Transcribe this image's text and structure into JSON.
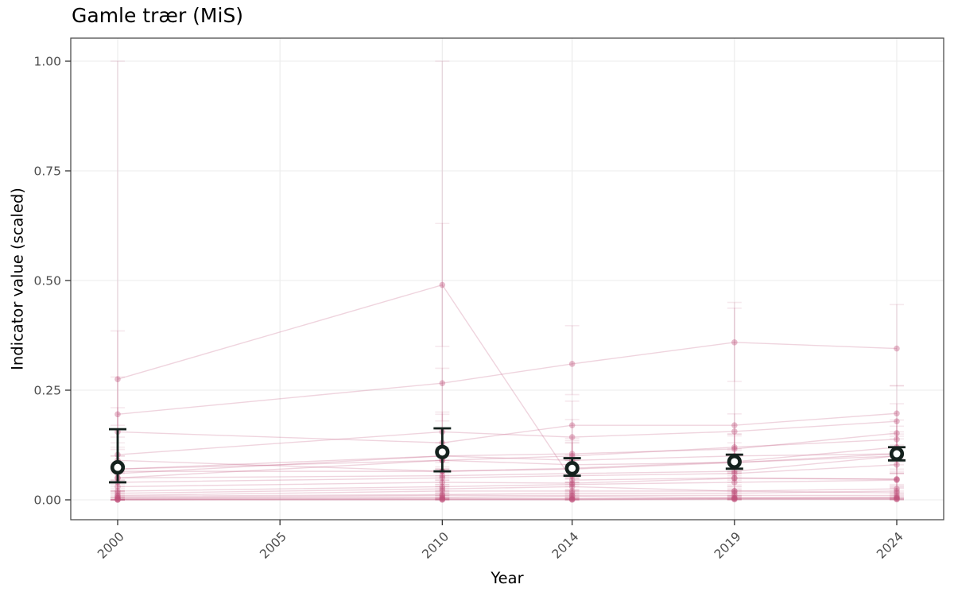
{
  "title": "Gamle trær (MiS)",
  "chart_data": {
    "type": "line",
    "title": "Gamle trær (MiS)",
    "xlabel": "Year",
    "ylabel": "Indicator value (scaled)",
    "grid": true,
    "legend": false,
    "ylim": [
      -0.045,
      1.05
    ],
    "xlim": [
      1998.5,
      2025.5
    ],
    "x_ticks": [
      {
        "value": 2000,
        "label": "2000"
      },
      {
        "value": 2005,
        "label": "2005"
      },
      {
        "value": 2010,
        "label": "2010"
      },
      {
        "value": 2014,
        "label": "2014"
      },
      {
        "value": 2019,
        "label": "2019"
      },
      {
        "value": 2024,
        "label": "2024"
      }
    ],
    "y_ticks": [
      {
        "value": 0.0,
        "label": "0.00"
      },
      {
        "value": 0.25,
        "label": "0.25"
      },
      {
        "value": 0.5,
        "label": "0.50"
      },
      {
        "value": 0.75,
        "label": "0.75"
      },
      {
        "value": 1.0,
        "label": "1.00"
      }
    ],
    "years": [
      2000,
      2010,
      2014,
      2019,
      2024
    ],
    "mean_series": {
      "name": "mean",
      "values": [
        0.074,
        0.109,
        0.072,
        0.087,
        0.105
      ],
      "ci_low": [
        0.04,
        0.065,
        0.055,
        0.071,
        0.09
      ],
      "ci_high": [
        0.161,
        0.163,
        0.095,
        0.103,
        0.12
      ]
    },
    "site_series": [
      {
        "values": [
          0.275,
          0.49,
          0.045,
          0.05,
          0.047
        ],
        "ci_low": [
          0.17,
          0.35,
          0.015,
          0.02,
          0.02
        ],
        "ci_high": [
          0.385,
          0.63,
          0.09,
          0.1,
          0.09
        ]
      },
      {
        "values": [
          0.195,
          0.266,
          0.31,
          0.359,
          0.345
        ],
        "ci_low": [
          0.13,
          0.18,
          0.24,
          0.27,
          0.26
        ],
        "ci_high": [
          0.28,
          0.3,
          0.397,
          0.45,
          0.445
        ]
      },
      {
        "values": [
          0.07,
          0.09,
          0.08,
          0.085,
          0.1
        ],
        "ci_low": [
          0.0,
          0.05,
          0.04,
          0.05,
          0.06
        ],
        "ci_high": [
          1.0,
          0.16,
          0.13,
          0.13,
          0.15
        ]
      },
      {
        "values": [
          0.06,
          0.1,
          0.09,
          0.1,
          0.105
        ],
        "ci_low": [
          0.02,
          0.02,
          0.05,
          0.06,
          0.065
        ],
        "ci_high": [
          0.12,
          1.0,
          0.14,
          0.15,
          0.155
        ]
      },
      {
        "values": [
          0.155,
          0.13,
          0.17,
          0.17,
          0.197
        ],
        "ci_low": [
          0.1,
          0.07,
          0.08,
          0.06,
          0.07
        ],
        "ci_high": [
          0.21,
          0.2,
          0.225,
          0.437,
          0.26
        ]
      },
      {
        "values": [
          0.103,
          0.155,
          0.143,
          0.156,
          0.179
        ],
        "ci_low": [
          0.063,
          0.115,
          0.103,
          0.116,
          0.139
        ],
        "ci_high": [
          0.143,
          0.195,
          0.183,
          0.196,
          0.219
        ]
      },
      {
        "values": [
          0.07,
          0.1,
          0.105,
          0.116,
          0.152
        ],
        "ci_low": [
          0.04,
          0.07,
          0.075,
          0.086,
          0.122
        ],
        "ci_high": [
          0.1,
          0.13,
          0.135,
          0.146,
          0.182
        ]
      },
      {
        "values": [
          0.05,
          0.09,
          0.1,
          0.12,
          0.138
        ],
        "ci_low": [
          0.02,
          0.06,
          0.07,
          0.09,
          0.108
        ],
        "ci_high": [
          0.08,
          0.12,
          0.13,
          0.15,
          0.168
        ]
      },
      {
        "values": [
          0.065,
          0.065,
          0.07,
          0.085,
          0.105
        ],
        "ci_low": [
          0.045,
          0.045,
          0.05,
          0.065,
          0.085
        ],
        "ci_high": [
          0.085,
          0.085,
          0.09,
          0.105,
          0.125
        ]
      },
      {
        "values": [
          0.05,
          0.055,
          0.06,
          0.065,
          0.1
        ],
        "ci_low": [
          0.03,
          0.035,
          0.04,
          0.045,
          0.08
        ],
        "ci_high": [
          0.07,
          0.075,
          0.08,
          0.085,
          0.12
        ]
      },
      {
        "values": [
          0.04,
          0.05,
          0.055,
          0.06,
          0.08
        ],
        "ci_low": [
          0.02,
          0.03,
          0.035,
          0.04,
          0.06
        ],
        "ci_high": [
          0.06,
          0.07,
          0.075,
          0.08,
          0.1
        ]
      },
      {
        "values": [
          0.03,
          0.04,
          0.038,
          0.049,
          0.047
        ],
        "ci_low": [
          0.015,
          0.025,
          0.023,
          0.034,
          0.032
        ],
        "ci_high": [
          0.045,
          0.055,
          0.053,
          0.064,
          0.062
        ]
      },
      {
        "values": [
          0.02,
          0.03,
          0.035,
          0.04,
          0.045
        ],
        "ci_low": [
          0.005,
          0.015,
          0.02,
          0.025,
          0.03
        ],
        "ci_high": [
          0.035,
          0.045,
          0.05,
          0.055,
          0.06
        ]
      },
      {
        "values": [
          0.015,
          0.025,
          0.03,
          0.02,
          0.025
        ],
        "ci_low": [
          0.005,
          0.015,
          0.02,
          0.01,
          0.015
        ],
        "ci_high": [
          0.025,
          0.035,
          0.04,
          0.03,
          0.035
        ]
      },
      {
        "values": [
          0.01,
          0.02,
          0.02,
          0.02,
          0.016
        ],
        "ci_low": [
          0.0,
          0.01,
          0.01,
          0.01,
          0.006
        ],
        "ci_high": [
          0.02,
          0.03,
          0.03,
          0.03,
          0.026
        ]
      },
      {
        "values": [
          0.008,
          0.012,
          0.015,
          0.015,
          0.02
        ],
        "ci_low": [
          0.0,
          0.004,
          0.007,
          0.007,
          0.012
        ],
        "ci_high": [
          0.016,
          0.02,
          0.023,
          0.023,
          0.028
        ]
      },
      {
        "values": [
          0.005,
          0.01,
          0.01,
          0.01,
          0.01
        ],
        "ci_low": [
          0.0,
          0.004,
          0.004,
          0.004,
          0.004
        ],
        "ci_high": [
          0.011,
          0.016,
          0.016,
          0.016,
          0.016
        ]
      },
      {
        "values": [
          0.004,
          0.006,
          0.008,
          0.005,
          0.006
        ],
        "ci_low": [
          0.0,
          0.002,
          0.004,
          0.001,
          0.002
        ],
        "ci_high": [
          0.008,
          0.01,
          0.012,
          0.009,
          0.01
        ]
      },
      {
        "values": [
          0.002,
          0.004,
          0.003,
          0.004,
          0.005
        ],
        "ci_low": [
          0.0,
          0.001,
          0.0,
          0.001,
          0.002
        ],
        "ci_high": [
          0.005,
          0.007,
          0.006,
          0.007,
          0.008
        ]
      },
      {
        "values": [
          0.001,
          0.002,
          0.002,
          0.003,
          0.003
        ],
        "ci_low": [
          0.0,
          0.0,
          0.0,
          0.001,
          0.001
        ],
        "ci_high": [
          0.003,
          0.004,
          0.004,
          0.005,
          0.005
        ]
      },
      {
        "values": [
          0.0,
          0.001,
          0.001,
          0.002,
          0.002
        ],
        "ci_low": [
          0.0,
          0.0,
          0.0,
          0.0,
          0.0
        ],
        "ci_high": [
          0.001,
          0.002,
          0.002,
          0.003,
          0.003
        ]
      },
      {
        "values": [
          0.0,
          0.0,
          0.0,
          0.001,
          0.001
        ],
        "ci_low": [
          0.0,
          0.0,
          0.0,
          0.0,
          0.0
        ],
        "ci_high": [
          0.001,
          0.001,
          0.001,
          0.002,
          0.002
        ]
      },
      {
        "values": [
          0.09,
          0.065,
          0.072,
          0.087,
          0.12
        ],
        "ci_low": [
          0.065,
          0.04,
          0.047,
          0.062,
          0.095
        ],
        "ci_high": [
          0.115,
          0.09,
          0.097,
          0.112,
          0.145
        ]
      }
    ]
  },
  "colors": {
    "site": "#c0527b",
    "mean": "#14211d",
    "grid": "#ebebeb",
    "border": "#4d4d4d",
    "tick_mark": "#333333",
    "tick_text": "#4d4d4d",
    "panel": "#ffffff",
    "background": "#ffffff"
  }
}
